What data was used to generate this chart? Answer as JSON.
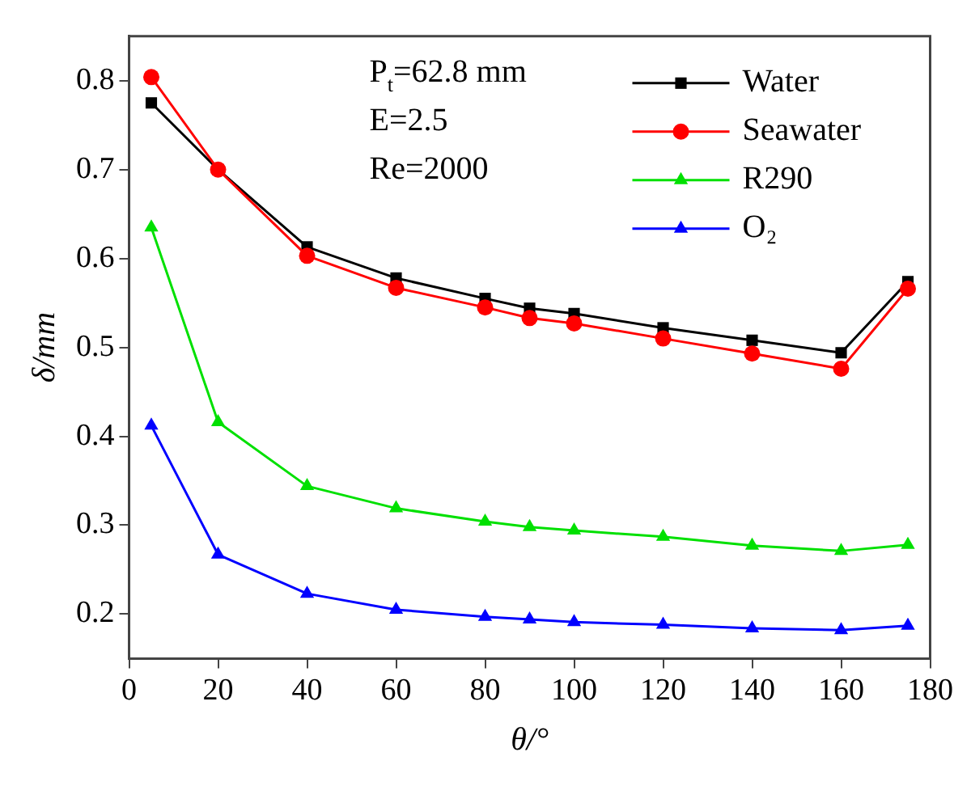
{
  "chart_data": {
    "type": "line",
    "xlabel": "θ/°",
    "ylabel": "δ/mm",
    "x": [
      5,
      20,
      40,
      60,
      80,
      90,
      100,
      120,
      140,
      160,
      175
    ],
    "series": [
      {
        "name": "Water",
        "color": "#000000",
        "marker": "square",
        "values": [
          0.775,
          0.7,
          0.613,
          0.578,
          0.555,
          0.544,
          0.538,
          0.522,
          0.508,
          0.494,
          0.574
        ]
      },
      {
        "name": "Seawater",
        "color": "#ff0000",
        "marker": "circle",
        "values": [
          0.804,
          0.7,
          0.603,
          0.567,
          0.545,
          0.533,
          0.527,
          0.51,
          0.493,
          0.476,
          0.566
        ]
      },
      {
        "name": "R290",
        "color": "#00e000",
        "marker": "triangle",
        "values": [
          0.635,
          0.416,
          0.344,
          0.319,
          0.304,
          0.298,
          0.294,
          0.287,
          0.277,
          0.271,
          0.278
        ]
      },
      {
        "name": "O₂",
        "color": "#0000ff",
        "marker": "triangle",
        "values": [
          0.412,
          0.267,
          0.223,
          0.205,
          0.197,
          0.194,
          0.191,
          0.188,
          0.184,
          0.182,
          0.187
        ]
      }
    ],
    "xlim": [
      0,
      180
    ],
    "xticks": [
      0,
      20,
      40,
      60,
      80,
      100,
      120,
      140,
      160,
      180
    ],
    "ylim": [
      0.15,
      0.85
    ],
    "yticks": [
      0.2,
      0.3,
      0.4,
      0.5,
      0.6,
      0.7,
      0.8
    ],
    "annotations": [
      "P$_{t}$=62.8 mm",
      "E=2.5",
      "Re=2000"
    ],
    "grid": false,
    "legend": "top right",
    "line_style": "solid"
  }
}
